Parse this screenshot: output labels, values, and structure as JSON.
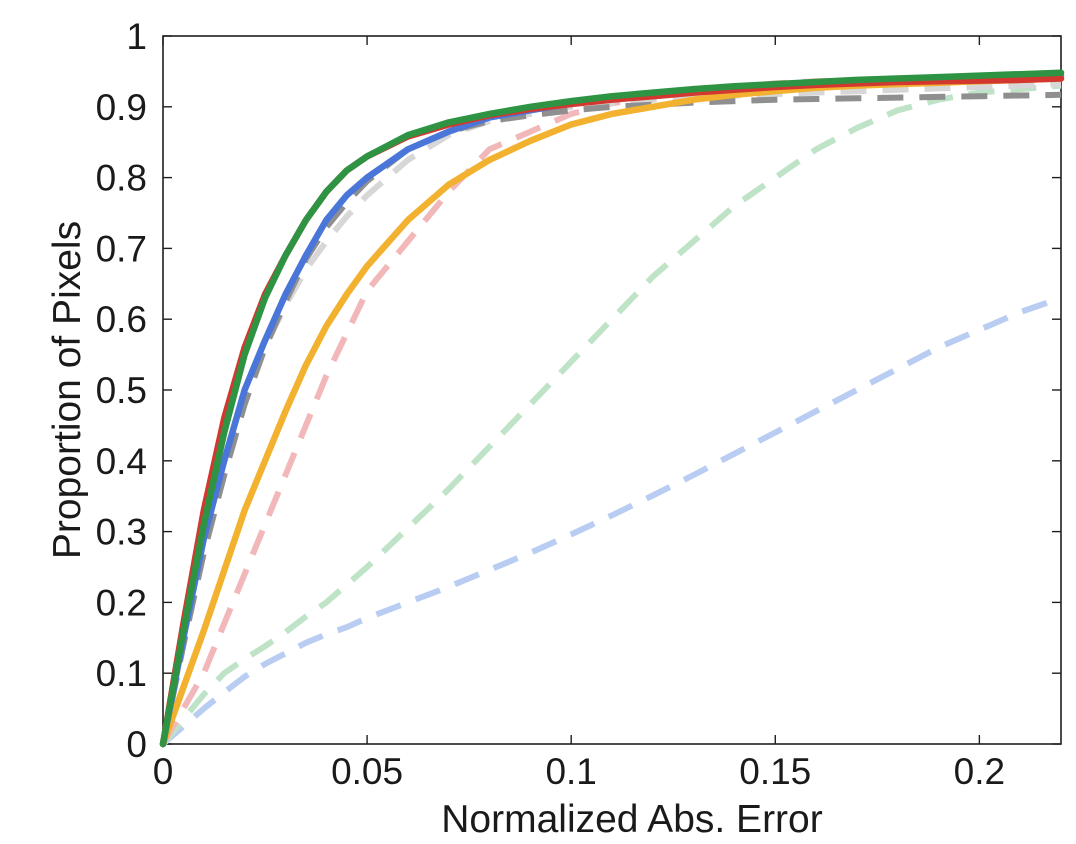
{
  "chart_data": {
    "type": "line",
    "title": "",
    "xlabel": "Normalized Abs. Error",
    "ylabel": "Proportion of Pixels",
    "xlim": [
      0,
      0.22
    ],
    "ylim": [
      0,
      1
    ],
    "xticks": [
      0,
      0.05,
      0.1,
      0.15,
      0.2
    ],
    "xtick_labels": [
      "0",
      "0.05",
      "0.1",
      "0.15",
      "0.2"
    ],
    "yticks": [
      0,
      0.1,
      0.2,
      0.3,
      0.4,
      0.5,
      0.6,
      0.7,
      0.8,
      0.9,
      1
    ],
    "ytick_labels": [
      "0",
      "0.1",
      "0.2",
      "0.3",
      "0.4",
      "0.5",
      "0.6",
      "0.7",
      "0.8",
      "0.9",
      "1"
    ],
    "grid": false,
    "legend": "none",
    "x": [
      0,
      0.005,
      0.01,
      0.015,
      0.02,
      0.025,
      0.03,
      0.035,
      0.04,
      0.045,
      0.05,
      0.06,
      0.07,
      0.08,
      0.09,
      0.1,
      0.11,
      0.12,
      0.13,
      0.14,
      0.15,
      0.16,
      0.17,
      0.18,
      0.19,
      0.2,
      0.21,
      0.22
    ],
    "series": [
      {
        "name": "dashed-light-blue",
        "color": "#b9ccf2",
        "dashed": true,
        "values": [
          0,
          0.025,
          0.05,
          0.073,
          0.095,
          0.113,
          0.128,
          0.143,
          0.155,
          0.165,
          0.178,
          0.2,
          0.222,
          0.246,
          0.27,
          0.296,
          0.323,
          0.351,
          0.38,
          0.41,
          0.44,
          0.47,
          0.5,
          0.53,
          0.56,
          0.585,
          0.61,
          0.63
        ]
      },
      {
        "name": "dashed-light-green",
        "color": "#bfe3c6",
        "dashed": true,
        "values": [
          0,
          0.035,
          0.07,
          0.1,
          0.12,
          0.138,
          0.158,
          0.18,
          0.2,
          0.225,
          0.25,
          0.305,
          0.36,
          0.42,
          0.48,
          0.54,
          0.6,
          0.66,
          0.71,
          0.76,
          0.8,
          0.84,
          0.87,
          0.895,
          0.91,
          0.92,
          0.925,
          0.93
        ]
      },
      {
        "name": "dashed-light-red",
        "color": "#f2b7b9",
        "dashed": true,
        "values": [
          0,
          0.05,
          0.1,
          0.17,
          0.24,
          0.31,
          0.38,
          0.45,
          0.52,
          0.58,
          0.64,
          0.71,
          0.78,
          0.84,
          0.865,
          0.89,
          0.905,
          0.915,
          0.922,
          0.928,
          0.933,
          0.936,
          0.938,
          0.939,
          0.94,
          0.94,
          0.94,
          0.94
        ]
      },
      {
        "name": "dashed-light-gray",
        "color": "#d7d7d7",
        "dashed": true,
        "values": [
          0,
          0.14,
          0.27,
          0.38,
          0.48,
          0.56,
          0.62,
          0.67,
          0.71,
          0.745,
          0.775,
          0.825,
          0.86,
          0.88,
          0.89,
          0.9,
          0.905,
          0.91,
          0.913,
          0.916,
          0.918,
          0.92,
          0.922,
          0.924,
          0.926,
          0.928,
          0.93,
          0.932
        ]
      },
      {
        "name": "dashed-gray",
        "color": "#8f8f8f",
        "dashed": true,
        "values": [
          0,
          0.14,
          0.27,
          0.38,
          0.48,
          0.56,
          0.625,
          0.685,
          0.73,
          0.765,
          0.795,
          0.84,
          0.865,
          0.88,
          0.888,
          0.895,
          0.9,
          0.903,
          0.906,
          0.908,
          0.91,
          0.911,
          0.912,
          0.913,
          0.914,
          0.915,
          0.916,
          0.917
        ]
      },
      {
        "name": "solid-yellow",
        "color": "#f2b22f",
        "dashed": false,
        "values": [
          0,
          0.08,
          0.16,
          0.245,
          0.33,
          0.4,
          0.47,
          0.535,
          0.59,
          0.635,
          0.675,
          0.74,
          0.79,
          0.825,
          0.852,
          0.875,
          0.89,
          0.9,
          0.91,
          0.917,
          0.922,
          0.927,
          0.93,
          0.932,
          0.934,
          0.936,
          0.938,
          0.94
        ]
      },
      {
        "name": "solid-blue",
        "color": "#4a76d9",
        "dashed": false,
        "values": [
          0,
          0.15,
          0.29,
          0.4,
          0.5,
          0.57,
          0.635,
          0.69,
          0.74,
          0.775,
          0.8,
          0.84,
          0.865,
          0.885,
          0.895,
          0.905,
          0.912,
          0.918,
          0.923,
          0.927,
          0.93,
          0.933,
          0.936,
          0.938,
          0.94,
          0.941,
          0.943,
          0.945
        ]
      },
      {
        "name": "solid-red",
        "color": "#d2382f",
        "dashed": false,
        "values": [
          0,
          0.17,
          0.33,
          0.46,
          0.56,
          0.635,
          0.69,
          0.74,
          0.78,
          0.81,
          0.83,
          0.858,
          0.875,
          0.888,
          0.897,
          0.904,
          0.91,
          0.915,
          0.92,
          0.924,
          0.928,
          0.931,
          0.933,
          0.935,
          0.936,
          0.937,
          0.938,
          0.94
        ]
      },
      {
        "name": "solid-green",
        "color": "#2e9443",
        "dashed": false,
        "values": [
          0,
          0.16,
          0.31,
          0.44,
          0.55,
          0.63,
          0.69,
          0.74,
          0.78,
          0.81,
          0.83,
          0.86,
          0.878,
          0.89,
          0.9,
          0.908,
          0.915,
          0.92,
          0.925,
          0.929,
          0.932,
          0.935,
          0.938,
          0.94,
          0.942,
          0.944,
          0.946,
          0.948
        ]
      }
    ]
  }
}
